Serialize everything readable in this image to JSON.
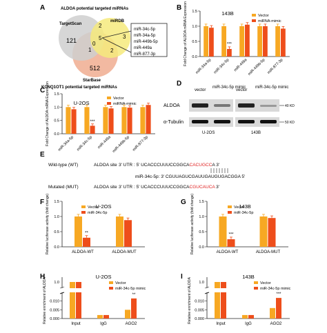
{
  "colors": {
    "vector": "#f7a823",
    "mimic": "#ee4e1b",
    "venn_left": "#cfcfcf",
    "venn_top": "#f6ea7c",
    "venn_bottom": "#f0ad90",
    "highlight": "#e02020",
    "axis": "#222222"
  },
  "panelA": {
    "letter": "A",
    "title": "ALDOA potential targeted miRNAs",
    "set_left": "TargetScan",
    "set_right": "miRDB",
    "set_bottom": "StarBase",
    "bottom_title": "KCNQ1OT1 potential targeted miRNAs",
    "counts": [
      "121",
      "2",
      "5",
      "0",
      "3",
      "1",
      "2",
      "512"
    ],
    "list": [
      "miR-34c-5p",
      "miR-34a-5p",
      "miR-449b-5p",
      "miR-449a",
      "miR-877-3p"
    ]
  },
  "panelB": {
    "letter": "B"
  },
  "panelC": {
    "letter": "C"
  },
  "panelD": {
    "letter": "D",
    "label_left": "vector",
    "label_mimic_left": "miR-34c-5p mimic",
    "label_right": "vector",
    "label_mimic_right": "miR-34c-5p mimic",
    "row1": "ALDOA",
    "row2": "α-Tubulin",
    "kd1": "40 KD",
    "kd2": "50 KD",
    "cell_left": "U-2OS",
    "cell_right": "143B"
  },
  "panelE": {
    "letter": "E",
    "wt_label": "Wild-type (WT)",
    "wt_site": "ALDOA site",
    "wt_seq_prefix": "3' UTR : 5' UCACCCUUUCCGGCA",
    "wt_seq_red": "CACUGCC",
    "wt_seq_suffix": "A 3'",
    "mir_label": "miR-34c-5p: 3' CGUUAGUCGAUUGAUGUGACGGA 5'",
    "mut_label": "Mutated (MUT)",
    "mut_site": "ALDOA site",
    "mut_seq_prefix": "3' UTR : 5' UCACCCUUUCCGGCA",
    "mut_seq_red": "CGUCAUCA",
    "mut_seq_suffix": " 3'"
  },
  "chart_data": [
    {
      "panel": "B",
      "type": "bar",
      "title": "143B",
      "ylabel": "Fold Change of ALDOA mRNA Expression",
      "ylim": [
        0,
        1.5
      ],
      "yticks": [
        "0.0",
        "0.5",
        "1.0",
        "1.5"
      ],
      "categories": [
        "miR-34a-5p",
        "miR-34c-5p",
        "miR-449a",
        "miR-449b-5p",
        "miR-877-3p"
      ],
      "series": [
        {
          "name": "Vector",
          "values": [
            1.0,
            1.0,
            1.0,
            1.0,
            1.0
          ]
        },
        {
          "name": "miRNA-mimic",
          "values": [
            0.95,
            0.25,
            1.05,
            1.0,
            0.92
          ]
        }
      ],
      "annotations": [
        "***"
      ]
    },
    {
      "panel": "C",
      "type": "bar",
      "title": "U-2OS",
      "ylabel": "Fold Change of ALDOA mRNA Expression",
      "ylim": [
        0,
        1.5
      ],
      "yticks": [
        "0.0",
        "0.5",
        "1.0",
        "1.5"
      ],
      "categories": [
        "miR-34a-5p",
        "miR-34c-5p",
        "miR-449a",
        "miR-449b-5p",
        "miR-877-3p"
      ],
      "series": [
        {
          "name": "Vector",
          "values": [
            1.0,
            1.0,
            1.0,
            1.0,
            1.0
          ]
        },
        {
          "name": "miRNA-mimic",
          "values": [
            0.92,
            0.3,
            0.95,
            0.98,
            1.08
          ]
        }
      ],
      "annotations": [
        "***"
      ]
    },
    {
      "panel": "F",
      "type": "bar",
      "title": "U-2OS",
      "ylabel": "Relative luciferase activity (fold change)",
      "ylim": [
        0,
        1.5
      ],
      "yticks": [
        "0.0",
        "0.5",
        "1.0",
        "1.5"
      ],
      "categories": [
        "ALDOA-WT",
        "ALDOA-MUT"
      ],
      "series": [
        {
          "name": "Vector",
          "values": [
            1.0,
            1.0
          ]
        },
        {
          "name": "miR-34c-5p",
          "values": [
            0.3,
            0.88
          ]
        }
      ],
      "annotations": [
        "**"
      ]
    },
    {
      "panel": "G",
      "type": "bar",
      "title": "143B",
      "ylabel": "Relative luciferase activity (fold change)",
      "ylim": [
        0,
        1.5
      ],
      "yticks": [
        "0.0",
        "0.5",
        "1.0",
        "1.5"
      ],
      "categories": [
        "ALDOA-WT",
        "ALDOA-MUT"
      ],
      "series": [
        {
          "name": "Vector",
          "values": [
            1.0,
            1.0
          ]
        },
        {
          "name": "miR-34c-5p",
          "values": [
            0.25,
            0.95
          ]
        }
      ],
      "annotations": [
        "***"
      ]
    },
    {
      "panel": "H",
      "type": "bar",
      "title": "U-2OS",
      "ylabel": "Relative enrichment of ALDOA",
      "yticks": [
        "0.000",
        "0.005",
        "0.010",
        "1.0"
      ],
      "categories": [
        "Input",
        "IgG",
        "AGO2"
      ],
      "series": [
        {
          "name": "Vector",
          "values": [
            1.0,
            0.002,
            0.005
          ]
        },
        {
          "name": "miR-34c-5p mimic",
          "values": [
            1.0,
            0.002,
            0.0115
          ]
        }
      ],
      "annotations": [
        "**"
      ]
    },
    {
      "panel": "I",
      "type": "bar",
      "title": "143B",
      "ylabel": "Relative enrichment of ALDOA",
      "yticks": [
        "0.000",
        "0.005",
        "0.010",
        "1.0"
      ],
      "categories": [
        "Input",
        "IgG",
        "AGO2"
      ],
      "series": [
        {
          "name": "Vector",
          "values": [
            1.0,
            0.002,
            0.006
          ]
        },
        {
          "name": "miR-34c-5p mimic",
          "values": [
            1.0,
            0.002,
            0.0118
          ]
        }
      ],
      "annotations": [
        "***"
      ]
    }
  ]
}
